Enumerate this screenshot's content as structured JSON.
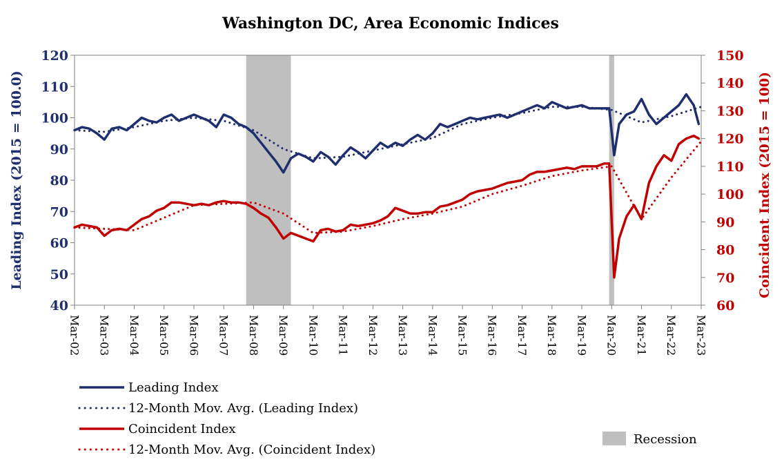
{
  "chart_data": {
    "type": "line",
    "title": "Washington DC, Area Economic Indices",
    "ylabel_left": "Leading Index (2015 = 100.0)",
    "ylabel_right": "Coincident Index (2015 = 100)",
    "ylim_left": [
      40,
      120
    ],
    "yticks_left": [
      40,
      50,
      60,
      70,
      80,
      90,
      100,
      110,
      120
    ],
    "ylim_right": [
      60,
      150
    ],
    "yticks_right": [
      60,
      70,
      80,
      90,
      100,
      110,
      120,
      130,
      140,
      150
    ],
    "xlim": [
      "Mar-02",
      "Mar-23"
    ],
    "x_ticks": [
      "Mar-02",
      "Mar-03",
      "Mar-04",
      "Mar-05",
      "Mar-06",
      "Mar-07",
      "Mar-08",
      "Mar-09",
      "Mar-10",
      "Mar-11",
      "Mar-12",
      "Mar-13",
      "Mar-14",
      "Mar-15",
      "Mar-16",
      "Mar-17",
      "Mar-18",
      "Mar-19",
      "Mar-20",
      "Mar-21",
      "Mar-22",
      "Mar-23"
    ],
    "grid": false,
    "legend_position": "bottom",
    "recession_periods": [
      {
        "start": "Dec-07",
        "end": "Jun-09"
      },
      {
        "start": "Feb-20",
        "end": "Apr-20"
      }
    ],
    "colors": {
      "leading": "#1F2F6E",
      "coincident": "#C00000",
      "recession": "#BFBFBF"
    },
    "series": [
      {
        "name": "Leading Index",
        "axis": "left",
        "style": "solid",
        "points": [
          [
            "Mar-02",
            96
          ],
          [
            "Jun-02",
            97
          ],
          [
            "Sep-02",
            96.5
          ],
          [
            "Dec-02",
            95
          ],
          [
            "Mar-03",
            93
          ],
          [
            "Jun-03",
            96.5
          ],
          [
            "Sep-03",
            97
          ],
          [
            "Dec-03",
            96
          ],
          [
            "Mar-04",
            98
          ],
          [
            "Jun-04",
            100
          ],
          [
            "Sep-04",
            99
          ],
          [
            "Dec-04",
            98.5
          ],
          [
            "Mar-05",
            100
          ],
          [
            "Jun-05",
            101
          ],
          [
            "Sep-05",
            99
          ],
          [
            "Dec-05",
            100
          ],
          [
            "Mar-06",
            101
          ],
          [
            "Jun-06",
            100
          ],
          [
            "Sep-06",
            99
          ],
          [
            "Dec-06",
            97
          ],
          [
            "Mar-07",
            101
          ],
          [
            "Jun-07",
            100
          ],
          [
            "Sep-07",
            98
          ],
          [
            "Dec-07",
            97
          ],
          [
            "Mar-08",
            95
          ],
          [
            "Jun-08",
            92
          ],
          [
            "Sep-08",
            89
          ],
          [
            "Dec-08",
            86
          ],
          [
            "Mar-09",
            82.5
          ],
          [
            "Jun-09",
            87
          ],
          [
            "Sep-09",
            88.5
          ],
          [
            "Dec-09",
            87.5
          ],
          [
            "Mar-10",
            86
          ],
          [
            "Jun-10",
            89
          ],
          [
            "Sep-10",
            87.5
          ],
          [
            "Dec-10",
            85
          ],
          [
            "Mar-11",
            88
          ],
          [
            "Jun-11",
            90.5
          ],
          [
            "Sep-11",
            89
          ],
          [
            "Dec-11",
            87
          ],
          [
            "Mar-12",
            89.5
          ],
          [
            "Jun-12",
            92
          ],
          [
            "Sep-12",
            90.5
          ],
          [
            "Dec-12",
            92
          ],
          [
            "Mar-13",
            91
          ],
          [
            "Jun-13",
            93
          ],
          [
            "Sep-13",
            94.5
          ],
          [
            "Dec-13",
            93
          ],
          [
            "Mar-14",
            95
          ],
          [
            "Jun-14",
            98
          ],
          [
            "Sep-14",
            97
          ],
          [
            "Dec-14",
            98
          ],
          [
            "Mar-15",
            99
          ],
          [
            "Jun-15",
            100
          ],
          [
            "Sep-15",
            99.5
          ],
          [
            "Dec-15",
            100
          ],
          [
            "Mar-16",
            100.5
          ],
          [
            "Jun-16",
            101
          ],
          [
            "Sep-16",
            100
          ],
          [
            "Dec-16",
            101
          ],
          [
            "Mar-17",
            102
          ],
          [
            "Jun-17",
            103
          ],
          [
            "Sep-17",
            104
          ],
          [
            "Dec-17",
            103
          ],
          [
            "Mar-18",
            105
          ],
          [
            "Jun-18",
            104
          ],
          [
            "Sep-18",
            103
          ],
          [
            "Dec-18",
            103.5
          ],
          [
            "Mar-19",
            104
          ],
          [
            "Jun-19",
            103
          ],
          [
            "Sep-19",
            103
          ],
          [
            "Dec-19",
            103
          ],
          [
            "Feb-20",
            103
          ],
          [
            "Apr-20",
            88
          ],
          [
            "Jun-20",
            98
          ],
          [
            "Sep-20",
            101
          ],
          [
            "Dec-20",
            102
          ],
          [
            "Mar-21",
            106
          ],
          [
            "Jun-21",
            101
          ],
          [
            "Sep-21",
            98
          ],
          [
            "Dec-21",
            100
          ],
          [
            "Mar-22",
            102
          ],
          [
            "Jun-22",
            104
          ],
          [
            "Sep-22",
            107.5
          ],
          [
            "Dec-22",
            104
          ],
          [
            "Feb-23",
            98
          ]
        ]
      },
      {
        "name": "12-Month Mov. Avg. (Leading Index)",
        "axis": "left",
        "style": "dotted",
        "points": [
          [
            "Mar-02",
            96
          ],
          [
            "Mar-03",
            95.5
          ],
          [
            "Mar-04",
            97
          ],
          [
            "Mar-05",
            99
          ],
          [
            "Mar-06",
            100
          ],
          [
            "Mar-07",
            99
          ],
          [
            "Mar-08",
            96
          ],
          [
            "Mar-09",
            90
          ],
          [
            "Mar-10",
            87
          ],
          [
            "Mar-11",
            87.5
          ],
          [
            "Mar-12",
            89.5
          ],
          [
            "Mar-13",
            91.5
          ],
          [
            "Mar-14",
            93.5
          ],
          [
            "Mar-15",
            98
          ],
          [
            "Mar-16",
            100
          ],
          [
            "Mar-17",
            101.5
          ],
          [
            "Mar-18",
            103.5
          ],
          [
            "Mar-19",
            103.5
          ],
          [
            "Mar-20",
            102.5
          ],
          [
            "Mar-21",
            98.5
          ],
          [
            "Mar-22",
            100.5
          ],
          [
            "Mar-23",
            103.5
          ]
        ]
      },
      {
        "name": "Coincident Index",
        "axis": "right",
        "style": "solid",
        "points": [
          [
            "Mar-02",
            88
          ],
          [
            "Jun-02",
            89
          ],
          [
            "Sep-02",
            88.5
          ],
          [
            "Dec-02",
            88
          ],
          [
            "Mar-03",
            85
          ],
          [
            "Jun-03",
            87
          ],
          [
            "Sep-03",
            87.5
          ],
          [
            "Dec-03",
            87
          ],
          [
            "Mar-04",
            89
          ],
          [
            "Jun-04",
            91
          ],
          [
            "Sep-04",
            92
          ],
          [
            "Dec-04",
            94
          ],
          [
            "Mar-05",
            95
          ],
          [
            "Jun-05",
            97
          ],
          [
            "Sep-05",
            97
          ],
          [
            "Dec-05",
            96.5
          ],
          [
            "Mar-06",
            96
          ],
          [
            "Jun-06",
            96.5
          ],
          [
            "Sep-06",
            96
          ],
          [
            "Dec-06",
            97
          ],
          [
            "Mar-07",
            97.5
          ],
          [
            "Jun-07",
            97
          ],
          [
            "Sep-07",
            97
          ],
          [
            "Dec-07",
            96.5
          ],
          [
            "Mar-08",
            95
          ],
          [
            "Jun-08",
            93
          ],
          [
            "Sep-08",
            91.5
          ],
          [
            "Dec-08",
            88
          ],
          [
            "Mar-09",
            84
          ],
          [
            "Jun-09",
            86
          ],
          [
            "Sep-09",
            85
          ],
          [
            "Dec-09",
            84
          ],
          [
            "Mar-10",
            83
          ],
          [
            "Jun-10",
            87
          ],
          [
            "Sep-10",
            87.5
          ],
          [
            "Dec-10",
            86.5
          ],
          [
            "Mar-11",
            87
          ],
          [
            "Jun-11",
            89
          ],
          [
            "Sep-11",
            88.5
          ],
          [
            "Dec-11",
            89
          ],
          [
            "Mar-12",
            89.5
          ],
          [
            "Jun-12",
            90.5
          ],
          [
            "Sep-12",
            92
          ],
          [
            "Dec-12",
            95
          ],
          [
            "Mar-13",
            94
          ],
          [
            "Jun-13",
            93
          ],
          [
            "Sep-13",
            93
          ],
          [
            "Dec-13",
            93.5
          ],
          [
            "Mar-14",
            93.5
          ],
          [
            "Jun-14",
            95.5
          ],
          [
            "Sep-14",
            96
          ],
          [
            "Dec-14",
            97
          ],
          [
            "Mar-15",
            98
          ],
          [
            "Jun-15",
            100
          ],
          [
            "Sep-15",
            101
          ],
          [
            "Dec-15",
            101.5
          ],
          [
            "Mar-16",
            102
          ],
          [
            "Jun-16",
            103
          ],
          [
            "Sep-16",
            104
          ],
          [
            "Dec-16",
            104.5
          ],
          [
            "Mar-17",
            105
          ],
          [
            "Jun-17",
            107
          ],
          [
            "Sep-17",
            108
          ],
          [
            "Dec-17",
            108
          ],
          [
            "Mar-18",
            108.5
          ],
          [
            "Jun-18",
            109
          ],
          [
            "Sep-18",
            109.5
          ],
          [
            "Dec-18",
            109
          ],
          [
            "Mar-19",
            110
          ],
          [
            "Jun-19",
            110
          ],
          [
            "Sep-19",
            110
          ],
          [
            "Dec-19",
            111
          ],
          [
            "Feb-20",
            111
          ],
          [
            "Apr-20",
            70
          ],
          [
            "Jun-20",
            84
          ],
          [
            "Sep-20",
            92
          ],
          [
            "Dec-20",
            96
          ],
          [
            "Mar-21",
            91
          ],
          [
            "Jun-21",
            104
          ],
          [
            "Sep-21",
            110
          ],
          [
            "Dec-21",
            114
          ],
          [
            "Mar-22",
            112
          ],
          [
            "Jun-22",
            118
          ],
          [
            "Sep-22",
            120
          ],
          [
            "Dec-22",
            121
          ],
          [
            "Feb-23",
            120
          ]
        ]
      },
      {
        "name": "12-Month Mov. Avg. (Coincident Index)",
        "axis": "right",
        "style": "dotted",
        "points": [
          [
            "Mar-02",
            88
          ],
          [
            "Mar-03",
            87.5
          ],
          [
            "Mar-04",
            87
          ],
          [
            "Mar-05",
            91.5
          ],
          [
            "Mar-06",
            96
          ],
          [
            "Mar-07",
            96.5
          ],
          [
            "Mar-08",
            97
          ],
          [
            "Mar-09",
            93
          ],
          [
            "Mar-10",
            86
          ],
          [
            "Mar-11",
            86.5
          ],
          [
            "Mar-12",
            88.5
          ],
          [
            "Mar-13",
            91
          ],
          [
            "Mar-14",
            93
          ],
          [
            "Mar-15",
            95.5
          ],
          [
            "Mar-16",
            100
          ],
          [
            "Mar-17",
            103
          ],
          [
            "Mar-18",
            106.5
          ],
          [
            "Mar-19",
            108.5
          ],
          [
            "Mar-20",
            110
          ],
          [
            "Mar-21",
            91
          ],
          [
            "Mar-22",
            106
          ],
          [
            "Mar-23",
            119
          ]
        ]
      }
    ],
    "legend": [
      {
        "label": "Leading Index",
        "style": "solid",
        "color": "#1F2F6E"
      },
      {
        "label": "12-Month Mov. Avg. (Leading Index)",
        "style": "dotted",
        "color": "#1F2F6E"
      },
      {
        "label": "Coincident Index",
        "style": "solid",
        "color": "#C00000"
      },
      {
        "label": "12-Month Mov. Avg. (Coincident Index)",
        "style": "dotted",
        "color": "#C00000"
      },
      {
        "label": "Recession",
        "style": "box",
        "color": "#BFBFBF"
      }
    ]
  }
}
